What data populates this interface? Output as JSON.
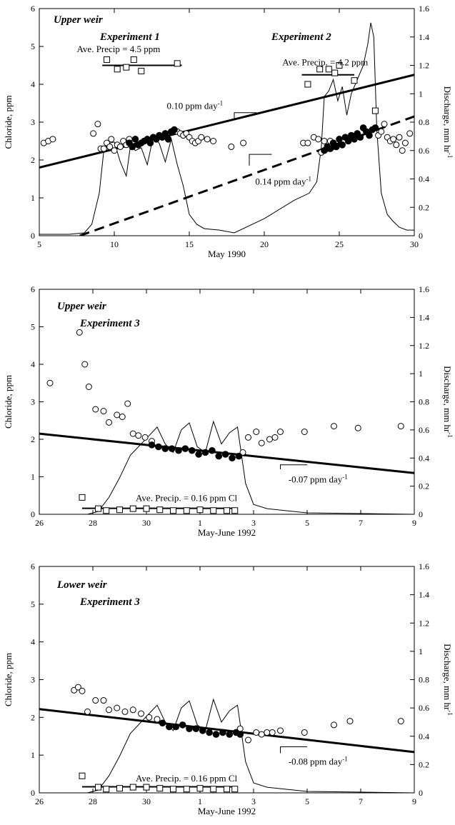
{
  "chart_data": [
    {
      "type": "scatter",
      "xlabel": "May 1990",
      "ylabel": "Chloride, ppm",
      "y2label": "Discharge, mm hr",
      "y2label_sup": "-1",
      "xlim": [
        5,
        30
      ],
      "ylim": [
        0,
        6
      ],
      "y2lim": [
        0,
        1.6
      ],
      "xticks": [
        5,
        10,
        15,
        20,
        25,
        30
      ],
      "xtick_labels": [
        "5",
        "10",
        "15",
        "20",
        "25",
        "30"
      ],
      "yticks": [
        0,
        1,
        2,
        3,
        4,
        5,
        6
      ],
      "y2ticks": [
        0,
        0.2,
        0.4,
        0.6,
        0.8,
        1,
        1.2,
        1.4,
        1.6
      ],
      "y2tick_labels": [
        "0",
        "0.2",
        "0.4",
        "0.6",
        "0.8",
        "1",
        "1.2",
        "1.4",
        "1.6"
      ],
      "titles": [
        "Upper  weir",
        "Experiment 1",
        "Experiment  2"
      ],
      "annotations": [
        {
          "text": "Ave. Precip = 4.5 ppm",
          "x": 7.5,
          "y": 4.85
        },
        {
          "text": "Ave. Precip. = 4.2 ppm",
          "x": 21.2,
          "y": 4.5
        },
        {
          "text": "0.10 ppm day",
          "sup": "-1",
          "x": 13.5,
          "y": 3.35
        },
        {
          "text": "0.14 ppm day",
          "sup": "-1",
          "x": 19.4,
          "y": 1.35
        }
      ],
      "lines": [
        {
          "name": "trend-1",
          "style": "solid",
          "x": [
            5,
            30
          ],
          "y": [
            1.8,
            4.25
          ]
        },
        {
          "name": "trend-2",
          "style": "dashed",
          "x": [
            7.7,
            30
          ],
          "y": [
            0,
            3.15
          ]
        },
        {
          "name": "precip-avg-1",
          "style": "solid",
          "x": [
            9.2,
            14.5
          ],
          "y": [
            4.5,
            4.5
          ]
        },
        {
          "name": "precip-avg-2",
          "style": "solid",
          "x": [
            22.5,
            26
          ],
          "y": [
            4.25,
            4.25
          ]
        }
      ],
      "slope_markers": [
        {
          "x": [
            18,
            18,
            19.5
          ],
          "y": [
            3.1,
            3.25,
            3.25
          ]
        },
        {
          "x": [
            19,
            19,
            20.5
          ],
          "y": [
            1.85,
            2.15,
            2.15
          ]
        }
      ],
      "series": [
        {
          "marker": "open-circle",
          "x": [
            5.3,
            5.6,
            5.9,
            8.6,
            8.9,
            9.1,
            9.3,
            9.5,
            9.7,
            9.8,
            10.0,
            10.2,
            10.4,
            10.6,
            10.8,
            11.0,
            14.2,
            14.4,
            14.6,
            14.8,
            15.0,
            15.2,
            15.4,
            15.6,
            15.8,
            16.2,
            16.6,
            17.8,
            18.6,
            22.6,
            22.9,
            23.3,
            23.6,
            23.8,
            24.0,
            24.2,
            24.4,
            24.6,
            27.6,
            27.8,
            28.0,
            28.2,
            28.4,
            28.6,
            28.8,
            29.0,
            29.2,
            29.4,
            29.7
          ],
          "y": [
            2.45,
            2.5,
            2.55,
            2.7,
            2.95,
            2.3,
            2.3,
            2.45,
            2.35,
            2.55,
            2.25,
            2.4,
            2.35,
            2.5,
            2.4,
            2.55,
            2.75,
            2.7,
            2.65,
            2.7,
            2.6,
            2.5,
            2.45,
            2.5,
            2.6,
            2.55,
            2.5,
            2.35,
            2.45,
            2.45,
            2.45,
            2.6,
            2.55,
            2.2,
            2.5,
            2.3,
            2.5,
            2.35,
            2.65,
            2.75,
            2.95,
            2.6,
            2.5,
            2.55,
            2.4,
            2.6,
            2.25,
            2.45,
            2.7
          ]
        },
        {
          "marker": "filled-circle",
          "x": [
            11.0,
            11.2,
            11.4,
            11.6,
            11.8,
            12.0,
            12.2,
            12.4,
            12.6,
            12.8,
            13.0,
            13.2,
            13.4,
            13.6,
            13.8,
            14.0,
            24.0,
            24.2,
            24.4,
            24.6,
            24.8,
            25.0,
            25.2,
            25.4,
            25.6,
            25.8,
            26.0,
            26.2,
            26.4,
            26.6,
            26.8,
            27.0,
            27.2,
            27.4
          ],
          "y": [
            2.45,
            2.35,
            2.55,
            2.4,
            2.45,
            2.5,
            2.55,
            2.45,
            2.6,
            2.55,
            2.65,
            2.6,
            2.7,
            2.55,
            2.75,
            2.8,
            2.25,
            2.35,
            2.3,
            2.45,
            2.35,
            2.55,
            2.4,
            2.6,
            2.5,
            2.65,
            2.55,
            2.7,
            2.6,
            2.85,
            2.75,
            2.65,
            2.8,
            2.85
          ]
        },
        {
          "marker": "open-square",
          "x": [
            9.5,
            10.2,
            10.8,
            11.3,
            11.8,
            14.2,
            22.9,
            23.7,
            24.3,
            24.7,
            25.0,
            26.0,
            27.4
          ],
          "y": [
            4.65,
            4.4,
            4.45,
            4.65,
            4.35,
            4.55,
            4.0,
            4.4,
            4.4,
            4.3,
            4.5,
            4.1,
            3.3
          ]
        },
        {
          "marker": "line",
          "axis": "y2",
          "x": [
            5,
            7,
            8,
            8.5,
            9,
            9.3,
            9.6,
            10,
            10.4,
            10.8,
            11.1,
            11.4,
            11.8,
            12.2,
            12.6,
            13.0,
            13.4,
            13.8,
            14.2,
            14.6,
            15,
            15.5,
            16,
            17,
            18,
            20,
            22,
            23,
            23.5,
            23.8,
            24.0,
            24.3,
            24.6,
            24.9,
            25.2,
            25.5,
            25.8,
            26.2,
            26.6,
            26.9,
            27.1,
            27.3,
            27.5,
            27.8,
            28.2,
            28.6,
            29,
            29.5,
            30
          ],
          "y": [
            0.01,
            0.01,
            0.02,
            0.08,
            0.3,
            0.6,
            0.65,
            0.66,
            0.52,
            0.42,
            0.65,
            0.6,
            0.62,
            0.5,
            0.7,
            0.65,
            0.52,
            0.68,
            0.5,
            0.35,
            0.15,
            0.08,
            0.05,
            0.04,
            0.02,
            0.12,
            0.25,
            0.3,
            0.38,
            0.62,
            0.98,
            1.02,
            1.1,
            0.95,
            1.05,
            0.85,
            1.0,
            1.1,
            1.2,
            1.35,
            1.5,
            1.4,
            0.75,
            0.3,
            0.15,
            0.1,
            0.06,
            0.04,
            0.04
          ]
        }
      ]
    },
    {
      "type": "scatter",
      "xlabel": "May-June 1992",
      "ylabel": "Chloride, ppm",
      "y2label": "Discharge, mm hr",
      "y2label_sup": "-1",
      "xlim": [
        26,
        40
      ],
      "ylim": [
        0,
        6
      ],
      "y2lim": [
        0,
        1.6
      ],
      "xticks": [
        26,
        28,
        30,
        32,
        34,
        36,
        38,
        40
      ],
      "xtick_labels": [
        "26",
        "28",
        "30",
        "1",
        "3",
        "5",
        "7",
        "9"
      ],
      "yticks": [
        0,
        1,
        2,
        3,
        4,
        5,
        6
      ],
      "y2ticks": [
        0,
        0.2,
        0.4,
        0.6,
        0.8,
        1,
        1.2,
        1.4,
        1.6
      ],
      "y2tick_labels": [
        "0",
        "0.2",
        "0.4",
        "0.6",
        "0.8",
        "1",
        "1.2",
        "1.4",
        "1.6"
      ],
      "titles": [
        "Upper  weir",
        "Experiment 3"
      ],
      "annotations": [
        {
          "text": "Ave. Precip. = 0.16 ppm Cl",
          "x": 29.6,
          "y": 0.35
        },
        {
          "text": "-0.07 ppm day",
          "sup": "-1",
          "x": 35.3,
          "y": 0.85
        }
      ],
      "lines": [
        {
          "name": "trend",
          "style": "solid",
          "x": [
            26,
            40
          ],
          "y": [
            2.15,
            1.1
          ]
        },
        {
          "name": "precip-avg",
          "style": "solid",
          "x": [
            27.6,
            33.4
          ],
          "y": [
            0.16,
            0.16
          ]
        }
      ],
      "slope_markers": [
        {
          "x": [
            35,
            35,
            36
          ],
          "y": [
            1.2,
            1.32,
            1.32
          ]
        }
      ],
      "series": [
        {
          "marker": "open-circle",
          "x": [
            26.4,
            27.5,
            27.7,
            27.85,
            28.1,
            28.4,
            28.6,
            28.9,
            29.1,
            29.3,
            29.5,
            29.7,
            29.95,
            30.2,
            33.6,
            33.8,
            34.1,
            34.3,
            34.6,
            34.8,
            35.0,
            35.9,
            37.0,
            37.9,
            39.5
          ],
          "y": [
            3.5,
            4.85,
            4.0,
            3.4,
            2.8,
            2.75,
            2.45,
            2.65,
            2.6,
            2.95,
            2.15,
            2.1,
            2.05,
            1.95,
            1.65,
            2.05,
            2.2,
            1.9,
            2.0,
            2.05,
            2.2,
            2.2,
            2.35,
            2.3,
            2.35
          ]
        },
        {
          "marker": "filled-circle",
          "x": [
            30.2,
            30.45,
            30.7,
            30.95,
            31.2,
            31.45,
            31.7,
            31.95,
            32.2,
            32.45,
            32.7,
            32.95,
            33.2,
            33.45
          ],
          "y": [
            1.85,
            1.8,
            1.75,
            1.75,
            1.7,
            1.75,
            1.7,
            1.6,
            1.65,
            1.7,
            1.55,
            1.6,
            1.5,
            1.55
          ]
        },
        {
          "marker": "open-square",
          "x": [
            27.6,
            28.2,
            28.5,
            29.0,
            29.5,
            30.0,
            30.5,
            31.0,
            31.5,
            32.0,
            32.5,
            33.0,
            33.3
          ],
          "y": [
            0.45,
            0.15,
            0.1,
            0.12,
            0.15,
            0.15,
            0.12,
            0.1,
            0.1,
            0.12,
            0.1,
            0.1,
            0.1
          ]
        },
        {
          "marker": "line",
          "axis": "y2",
          "x": [
            26,
            27.8,
            28.2,
            28.6,
            29.0,
            29.4,
            29.8,
            30.1,
            30.4,
            30.7,
            31.0,
            31.3,
            31.6,
            31.9,
            32.2,
            32.5,
            32.8,
            33.1,
            33.4,
            33.7,
            34.0,
            34.5,
            35,
            36,
            40
          ],
          "y": [
            0,
            0,
            0.02,
            0.12,
            0.26,
            0.42,
            0.5,
            0.56,
            0.62,
            0.5,
            0.44,
            0.6,
            0.65,
            0.48,
            0.44,
            0.66,
            0.5,
            0.58,
            0.62,
            0.22,
            0.07,
            0.04,
            0.03,
            0.01,
            0
          ]
        }
      ]
    },
    {
      "type": "scatter",
      "xlabel": "May-June 1992",
      "ylabel": "Chloride, ppm",
      "y2label": "Discharge, mm hr",
      "y2label_sup": "-1",
      "xlim": [
        26,
        40
      ],
      "ylim": [
        0,
        6
      ],
      "y2lim": [
        0,
        1.6
      ],
      "xticks": [
        26,
        28,
        30,
        32,
        34,
        36,
        38,
        40
      ],
      "xtick_labels": [
        "26",
        "28",
        "30",
        "1",
        "3",
        "5",
        "7",
        "9"
      ],
      "yticks": [
        0,
        1,
        2,
        3,
        4,
        5,
        6
      ],
      "y2ticks": [
        0,
        0.2,
        0.4,
        0.6,
        0.8,
        1,
        1.2,
        1.4,
        1.6
      ],
      "y2tick_labels": [
        "0",
        "0.2",
        "0.4",
        "0.6",
        "0.8",
        "1",
        "1.2",
        "1.4",
        "1.6"
      ],
      "titles": [
        "Lower  weir",
        "Experiment 3"
      ],
      "annotations": [
        {
          "text": "Ave. Precip. = 0.16 ppm Cl",
          "x": 29.6,
          "y": 0.3
        },
        {
          "text": "-0.08 ppm day",
          "sup": "-1",
          "x": 35.3,
          "y": 0.75
        }
      ],
      "lines": [
        {
          "name": "trend",
          "style": "solid",
          "x": [
            26,
            40
          ],
          "y": [
            2.22,
            1.08
          ]
        },
        {
          "name": "precip-avg",
          "style": "solid",
          "x": [
            27.6,
            33.4
          ],
          "y": [
            0.16,
            0.16
          ]
        }
      ],
      "slope_markers": [
        {
          "x": [
            35,
            35,
            36
          ],
          "y": [
            1.05,
            1.22,
            1.22
          ]
        }
      ],
      "series": [
        {
          "marker": "open-circle",
          "x": [
            27.3,
            27.45,
            27.6,
            27.8,
            28.1,
            28.4,
            28.6,
            28.9,
            29.2,
            29.5,
            29.8,
            30.1,
            30.4,
            33.5,
            33.8,
            34.1,
            34.3,
            34.5,
            34.7,
            35.0,
            35.9,
            37.0,
            37.6,
            39.5
          ],
          "y": [
            2.72,
            2.8,
            2.7,
            2.15,
            2.45,
            2.45,
            2.2,
            2.25,
            2.15,
            2.2,
            2.1,
            2.0,
            1.95,
            1.7,
            1.4,
            1.6,
            1.55,
            1.6,
            1.6,
            1.65,
            1.6,
            1.8,
            1.9,
            1.9
          ]
        },
        {
          "marker": "filled-circle",
          "x": [
            30.6,
            30.85,
            31.1,
            31.35,
            31.6,
            31.85,
            32.1,
            32.35,
            32.6,
            32.85,
            33.1,
            33.35,
            33.5
          ],
          "y": [
            1.85,
            1.75,
            1.75,
            1.8,
            1.7,
            1.7,
            1.65,
            1.6,
            1.55,
            1.6,
            1.55,
            1.6,
            1.55
          ]
        },
        {
          "marker": "open-square",
          "x": [
            27.6,
            28.2,
            28.5,
            29.0,
            29.5,
            30.0,
            30.5,
            31.0,
            31.5,
            32.0,
            32.5,
            33.0,
            33.3
          ],
          "y": [
            0.45,
            0.15,
            0.1,
            0.12,
            0.15,
            0.15,
            0.12,
            0.1,
            0.1,
            0.12,
            0.1,
            0.1,
            0.1
          ]
        },
        {
          "marker": "line",
          "axis": "y2",
          "x": [
            26,
            27.8,
            28.2,
            28.6,
            29.0,
            29.4,
            29.8,
            30.1,
            30.4,
            30.7,
            31.0,
            31.3,
            31.6,
            31.9,
            32.2,
            32.5,
            32.8,
            33.1,
            33.4,
            33.7,
            34.0,
            34.5,
            35,
            36,
            40
          ],
          "y": [
            0,
            0,
            0.02,
            0.12,
            0.26,
            0.42,
            0.5,
            0.56,
            0.62,
            0.5,
            0.44,
            0.6,
            0.65,
            0.48,
            0.44,
            0.66,
            0.5,
            0.58,
            0.62,
            0.22,
            0.07,
            0.04,
            0.03,
            0.01,
            0
          ]
        }
      ]
    }
  ]
}
